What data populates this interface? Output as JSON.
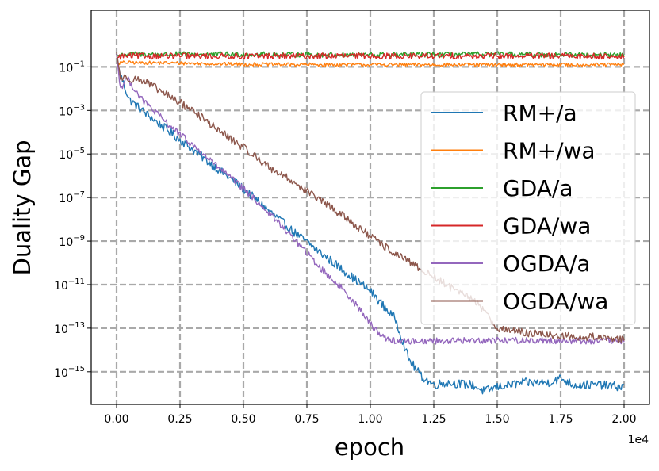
{
  "chart_data": {
    "type": "line",
    "title": "",
    "xlabel": "epoch",
    "ylabel": "Duality Gap",
    "x_offset_label": "1e4",
    "xlim": [
      -0.1,
      2.1
    ],
    "ylim_log10": [
      -16.5,
      1.6
    ],
    "y_scale": "log",
    "grid": true,
    "legend_position": "center-right",
    "x_ticks": [
      0.0,
      0.25,
      0.5,
      0.75,
      1.0,
      1.25,
      1.5,
      1.75,
      2.0
    ],
    "x_tick_labels": [
      "0.00",
      "0.25",
      "0.50",
      "0.75",
      "1.00",
      "1.25",
      "1.50",
      "1.75",
      "2.00"
    ],
    "y_ticks_log10": [
      -1,
      -3,
      -5,
      -7,
      -9,
      -11,
      -13,
      -15
    ],
    "y_tick_labels": [
      {
        "base": "10",
        "exp": "−1"
      },
      {
        "base": "10",
        "exp": "−3"
      },
      {
        "base": "10",
        "exp": "−5"
      },
      {
        "base": "10",
        "exp": "−7"
      },
      {
        "base": "10",
        "exp": "−9"
      },
      {
        "base": "10",
        "exp": "−11"
      },
      {
        "base": "10",
        "exp": "−13"
      },
      {
        "base": "10",
        "exp": "−15"
      }
    ],
    "series": [
      {
        "name": "RM+/a",
        "color": "#1f77b4",
        "x": [
          0.0,
          0.01,
          0.05,
          0.1,
          0.2,
          0.3,
          0.4,
          0.5,
          0.6,
          0.7,
          0.8,
          0.9,
          1.0,
          1.1,
          1.15,
          1.2,
          1.25,
          1.3,
          1.4,
          1.45,
          1.5,
          1.6,
          1.7,
          1.75,
          1.8,
          1.9,
          2.0
        ],
        "log10_values": [
          -0.4,
          -1.2,
          -2.5,
          -3.0,
          -3.9,
          -4.8,
          -5.7,
          -6.6,
          -7.6,
          -8.6,
          -9.5,
          -10.4,
          -11.3,
          -12.6,
          -14.4,
          -15.2,
          -15.6,
          -15.5,
          -15.6,
          -15.9,
          -15.7,
          -15.5,
          -15.5,
          -15.3,
          -15.6,
          -15.6,
          -15.7
        ],
        "jitter": 0.2
      },
      {
        "name": "RM+/wa",
        "color": "#ff7f0e",
        "x": [
          0.0,
          0.02,
          0.2,
          0.5,
          0.8,
          1.0,
          1.2,
          1.5,
          1.8,
          2.0
        ],
        "log10_values": [
          -0.85,
          -0.8,
          -0.82,
          -0.88,
          -0.9,
          -0.9,
          -0.9,
          -0.9,
          -0.9,
          -0.9
        ],
        "jitter": 0.08
      },
      {
        "name": "GDA/a",
        "color": "#2ca02c",
        "x": [
          0.0,
          0.02,
          0.5,
          1.0,
          1.5,
          2.0
        ],
        "log10_values": [
          -0.5,
          -0.42,
          -0.42,
          -0.45,
          -0.42,
          -0.45
        ],
        "jitter": 0.12
      },
      {
        "name": "GDA/wa",
        "color": "#d62728",
        "x": [
          0.0,
          0.02,
          0.5,
          1.0,
          1.5,
          2.0
        ],
        "log10_values": [
          -0.6,
          -0.5,
          -0.5,
          -0.5,
          -0.5,
          -0.5
        ],
        "jitter": 0.14
      },
      {
        "name": "OGDA/a",
        "color": "#9467bd",
        "x": [
          0.0,
          0.015,
          0.04,
          0.1,
          0.2,
          0.3,
          0.4,
          0.5,
          0.6,
          0.7,
          0.8,
          0.9,
          0.95,
          1.0,
          1.05,
          1.1,
          1.5,
          2.0
        ],
        "log10_values": [
          -0.4,
          -2.0,
          -1.5,
          -2.5,
          -3.6,
          -4.6,
          -5.6,
          -6.6,
          -7.7,
          -8.9,
          -10.2,
          -11.3,
          -12.0,
          -12.8,
          -13.4,
          -13.6,
          -13.55,
          -13.6
        ],
        "jitter": 0.15
      },
      {
        "name": "OGDA/wa",
        "color": "#8c564b",
        "x": [
          0.0,
          0.015,
          0.03,
          0.1,
          0.2,
          0.3,
          0.4,
          0.5,
          0.6,
          0.7,
          0.8,
          0.9,
          1.0,
          1.1,
          1.2,
          1.3,
          1.35,
          1.4,
          1.45,
          1.5,
          1.6,
          1.7,
          1.8,
          1.9,
          2.0
        ],
        "log10_values": [
          -0.3,
          -1.5,
          -1.5,
          -1.6,
          -2.3,
          -3.0,
          -3.9,
          -4.7,
          -5.6,
          -6.3,
          -7.1,
          -7.9,
          -8.8,
          -9.6,
          -10.3,
          -11.0,
          -11.4,
          -11.6,
          -12.2,
          -13.0,
          -13.2,
          -13.3,
          -13.4,
          -13.4,
          -13.5
        ],
        "jitter": 0.18
      }
    ]
  }
}
